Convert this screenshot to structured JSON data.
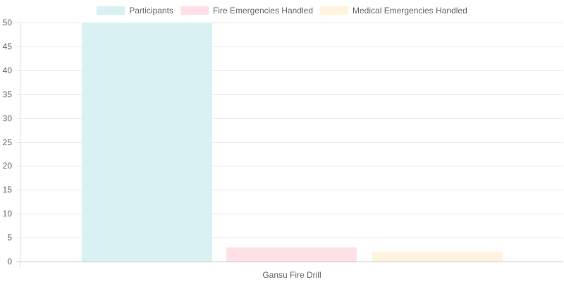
{
  "chart_data": {
    "type": "bar",
    "title": "",
    "categories": [
      "Gansu Fire Drill"
    ],
    "series": [
      {
        "name": "Participants",
        "values": [
          50
        ],
        "color": "#d9f1f2"
      },
      {
        "name": "Fire Emergencies Handled",
        "values": [
          3
        ],
        "color": "#ffe0e6"
      },
      {
        "name": "Medical Emergencies Handled",
        "values": [
          2
        ],
        "color": "#fff4dd"
      }
    ],
    "xlabel": "",
    "ylabel": "",
    "ylim": [
      0,
      50
    ],
    "yticks": [
      0,
      5,
      10,
      15,
      20,
      25,
      30,
      35,
      40,
      45,
      50
    ],
    "grid": true,
    "legend_position": "top"
  },
  "legend": [
    {
      "label": "Participants",
      "color": "#d9f1f2"
    },
    {
      "label": "Fire Emergencies Handled",
      "color": "#ffe0e6"
    },
    {
      "label": "Medical Emergencies Handled",
      "color": "#fff4dd"
    }
  ],
  "x_category_label": "Gansu Fire Drill"
}
